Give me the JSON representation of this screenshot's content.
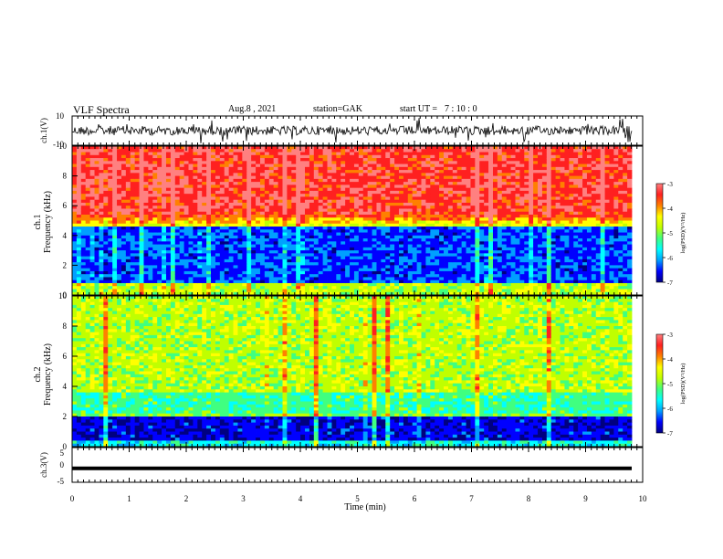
{
  "header": {
    "title": "VLF Spectra",
    "date_label": "Aug.8 , 2021",
    "station_label": "station=GAK",
    "start_label": "start UT =",
    "start_time": "7 : 10 : 0"
  },
  "colors": {
    "waveform": "#000000",
    "colormap": [
      "#000080",
      "#0000ff",
      "#00a0ff",
      "#00ffff",
      "#40ff80",
      "#c0ff00",
      "#ffff00",
      "#ff8000",
      "#ff2020",
      "#ff8080"
    ]
  },
  "chart_data": [
    {
      "type": "line",
      "ylabel": "ch.1(V)",
      "ylim": [
        -10,
        10
      ],
      "yticks": [
        "10",
        "-10"
      ],
      "xlim": [
        0,
        10
      ],
      "description_level": "noisy waveform around 0"
    },
    {
      "type": "heatmap",
      "ylabel": "ch.1\nFrequency (kHz)",
      "ylim": [
        0,
        10
      ],
      "yticks": [
        "0",
        "2",
        "4",
        "6",
        "8",
        "10"
      ],
      "xlim": [
        0,
        10
      ],
      "colorbar": {
        "label": "log(PSD)(V²/Hz)",
        "ticks": [
          "-3",
          "-4",
          "-5",
          "-6",
          "-7"
        ],
        "range": [
          -7,
          -3
        ]
      }
    },
    {
      "type": "heatmap",
      "ylabel": "ch.2\nFrequency (kHz)",
      "ylim": [
        0,
        10
      ],
      "yticks": [
        "0",
        "2",
        "4",
        "6",
        "8",
        "10"
      ],
      "xlim": [
        0,
        10
      ],
      "colorbar": {
        "label": "log(PSD)(V²/Hz)",
        "ticks": [
          "-3",
          "-4",
          "-5",
          "-6",
          "-7"
        ],
        "range": [
          -7,
          -3
        ]
      }
    },
    {
      "type": "line",
      "ylabel": "ch.3(V)",
      "ylim": [
        -5,
        5
      ],
      "yticks": [
        "5",
        "0",
        "-5"
      ],
      "xlim": [
        0,
        10
      ],
      "xlabel": "Time (min)",
      "xticks": [
        "0",
        "1",
        "2",
        "3",
        "4",
        "5",
        "6",
        "7",
        "8",
        "9",
        "10"
      ],
      "values_constant": -1
    }
  ]
}
